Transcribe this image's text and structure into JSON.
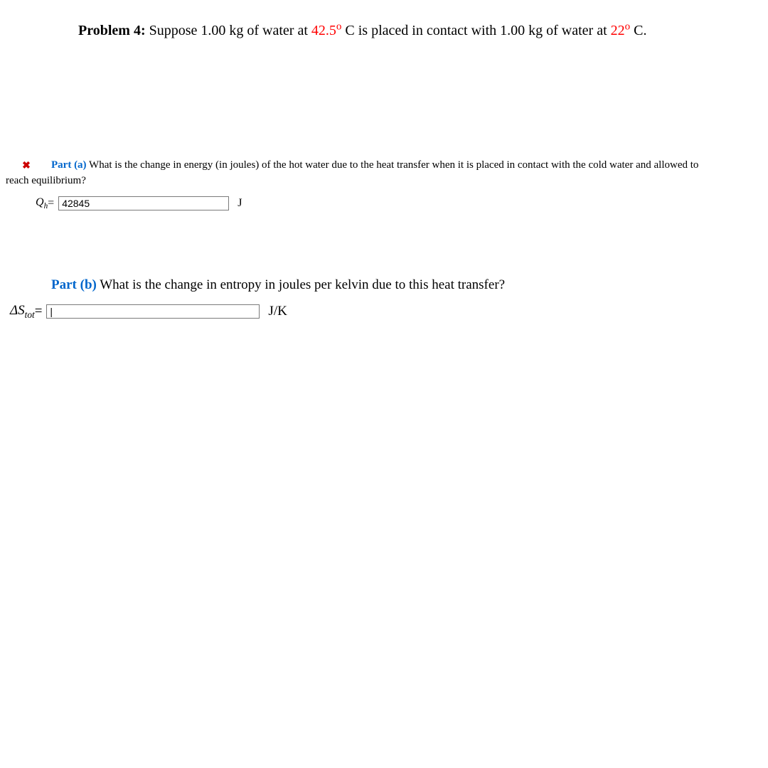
{
  "problem": {
    "label": "Problem 4:",
    "prefix": "Suppose 1.00 kg of water at ",
    "temp1": "42.5",
    "mid": " C is placed in contact with 1.00 kg of water at ",
    "temp2": "22",
    "suffix": " C."
  },
  "partA": {
    "label": "Part (a)",
    "question_lead": "  What is the change in energy (in joules) of the hot water due to the heat transfer when it is placed in contact with the cold water and allowed to ",
    "question_wrap": "reach equilibrium?",
    "var": "Q",
    "sub": "h",
    "equals": " = ",
    "value": "42845",
    "unit": "J",
    "status_icon": "✖"
  },
  "partB": {
    "label": "Part (b)",
    "question": "  What is the change in entropy in joules per kelvin due to this heat transfer?",
    "delta": "Δ",
    "var": "S",
    "sub": "tot",
    "equals": " = ",
    "value": "",
    "placeholder": "|",
    "unit": "J/K"
  }
}
